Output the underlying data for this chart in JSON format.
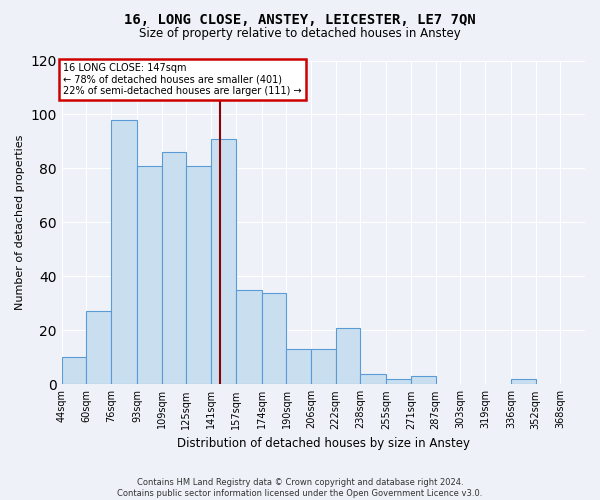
{
  "title": "16, LONG CLOSE, ANSTEY, LEICESTER, LE7 7QN",
  "subtitle": "Size of property relative to detached houses in Anstey",
  "xlabel": "Distribution of detached houses by size in Anstey",
  "ylabel": "Number of detached properties",
  "footer_line1": "Contains HM Land Registry data © Crown copyright and database right 2024.",
  "footer_line2": "Contains public sector information licensed under the Open Government Licence v3.0.",
  "bin_labels": [
    "44sqm",
    "60sqm",
    "76sqm",
    "93sqm",
    "109sqm",
    "125sqm",
    "141sqm",
    "157sqm",
    "174sqm",
    "190sqm",
    "206sqm",
    "222sqm",
    "238sqm",
    "255sqm",
    "271sqm",
    "287sqm",
    "303sqm",
    "319sqm",
    "336sqm",
    "352sqm",
    "368sqm"
  ],
  "bin_edges": [
    44,
    60,
    76,
    93,
    109,
    125,
    141,
    157,
    174,
    190,
    206,
    222,
    238,
    255,
    271,
    287,
    303,
    319,
    336,
    352,
    368
  ],
  "bar_heights": [
    10,
    27,
    98,
    81,
    86,
    81,
    91,
    35,
    34,
    13,
    13,
    21,
    4,
    2,
    3,
    0,
    0,
    0,
    2,
    0
  ],
  "bar_color": "#c9dff0",
  "bar_edge_color": "#5b9bd5",
  "property_size": 147,
  "annotation_line1": "16 LONG CLOSE: 147sqm",
  "annotation_line2": "← 78% of detached houses are smaller (401)",
  "annotation_line3": "22% of semi-detached houses are larger (111) →",
  "vline_color": "#8b0000",
  "ylim": [
    0,
    120
  ],
  "annotation_box_color": "#ffffff",
  "annotation_box_edge_color": "#cc0000",
  "background_color": "#eef2f8"
}
